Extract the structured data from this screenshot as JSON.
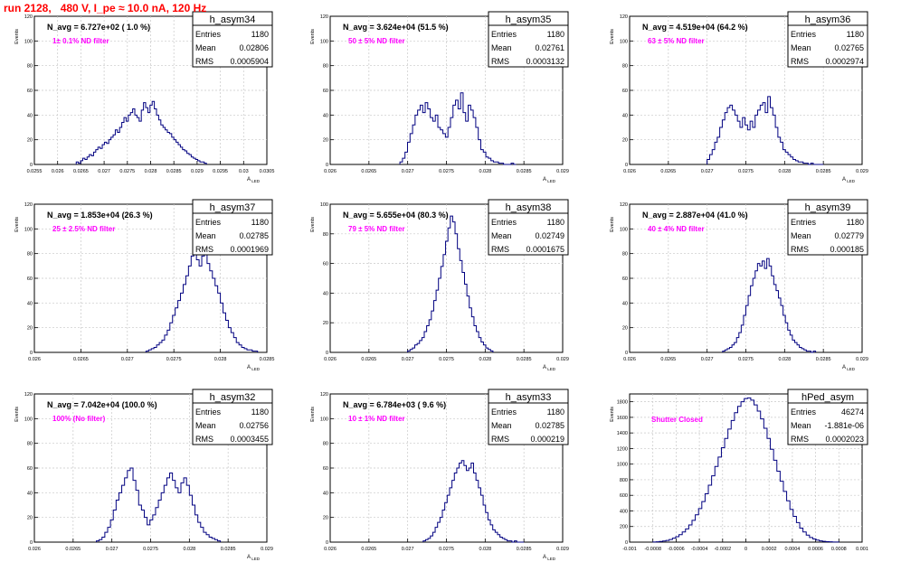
{
  "page_title": "run 2128,   480 V, I_pe ≈ 10.0 nA, 120 Hz",
  "colors": {
    "title": "#ff0000",
    "histogram": "#000080",
    "annotation": "#ff00ff",
    "grid": "#c8c8c8",
    "axis": "#000000"
  },
  "chart_data": [
    {
      "type": "histogram",
      "name": "h_asym34",
      "header": "N_avg = 6.727e+02 ( 1.0 %)",
      "filter_label": "1± 0.1% ND filter",
      "stats": {
        "entries": "1180",
        "mean": "0.02806",
        "rms": "0.0005904"
      },
      "ylabel": "Events",
      "xlabel": "A_LED",
      "xlim": [
        0.0255,
        0.0305
      ],
      "ylim": [
        0,
        120
      ],
      "xticks": [
        "0.0255",
        "0.026",
        "0.0265",
        "0.027",
        "0.0275",
        "0.028",
        "0.0285",
        "0.029",
        "0.0295",
        "0.03",
        "0.0305"
      ],
      "yticks": [
        "0",
        "20",
        "40",
        "60",
        "80",
        "100",
        "120"
      ],
      "bin_edges": [
        0.0264,
        0.0292
      ],
      "values": [
        2,
        1,
        3,
        5,
        4,
        6,
        8,
        7,
        10,
        12,
        14,
        13,
        16,
        18,
        17,
        20,
        22,
        24,
        28,
        26,
        30,
        34,
        38,
        35,
        40,
        42,
        45,
        40,
        38,
        35,
        44,
        50,
        46,
        42,
        48,
        51,
        45,
        40,
        36,
        32,
        30,
        28,
        26,
        25,
        22,
        20,
        18,
        16,
        14,
        12,
        11,
        9,
        8,
        6,
        5,
        4,
        3,
        2,
        2,
        1
      ]
    },
    {
      "type": "histogram",
      "name": "h_asym35",
      "header": "N_avg = 3.624e+04 (51.5 %)",
      "filter_label": "50 ± 5% ND filter",
      "stats": {
        "entries": "1180",
        "mean": "0.02761",
        "rms": "0.0003132"
      },
      "ylabel": "Events",
      "xlabel": "A_LED",
      "xlim": [
        0.026,
        0.029
      ],
      "ylim": [
        0,
        120
      ],
      "xticks": [
        "0.026",
        "0.0265",
        "0.027",
        "0.0275",
        "0.028",
        "0.0285",
        "0.029"
      ],
      "yticks": [
        "0",
        "20",
        "40",
        "60",
        "80",
        "100",
        "120"
      ],
      "bin_edges": [
        0.0269,
        0.0284
      ],
      "values": [
        2,
        5,
        10,
        18,
        25,
        32,
        40,
        44,
        48,
        42,
        50,
        45,
        38,
        35,
        40,
        30,
        28,
        25,
        22,
        30,
        38,
        48,
        52,
        45,
        58,
        42,
        35,
        48,
        44,
        38,
        30,
        20,
        12,
        10,
        6,
        5,
        3,
        2,
        2,
        1,
        1,
        0,
        0,
        0,
        1,
        0
      ]
    },
    {
      "type": "histogram",
      "name": "h_asym36",
      "header": "N_avg = 4.519e+04 (64.2 %)",
      "filter_label": "63 ± 5% ND filter",
      "stats": {
        "entries": "1180",
        "mean": "0.02765",
        "rms": "0.0002974"
      },
      "ylabel": "Events",
      "xlabel": "A_LED",
      "xlim": [
        0.026,
        0.029
      ],
      "ylim": [
        0,
        120
      ],
      "xticks": [
        "0.026",
        "0.0265",
        "0.027",
        "0.0275",
        "0.028",
        "0.0285",
        "0.029"
      ],
      "yticks": [
        "0",
        "20",
        "40",
        "60",
        "80",
        "100",
        "120"
      ],
      "bin_edges": [
        0.027,
        0.0285
      ],
      "values": [
        4,
        8,
        12,
        18,
        22,
        30,
        36,
        42,
        46,
        48,
        44,
        40,
        35,
        30,
        38,
        32,
        28,
        35,
        30,
        40,
        44,
        48,
        50,
        42,
        55,
        46,
        40,
        30,
        22,
        18,
        12,
        10,
        8,
        6,
        4,
        3,
        2,
        2,
        1,
        1,
        0,
        1,
        0,
        0,
        0,
        0
      ]
    },
    {
      "type": "histogram",
      "name": "h_asym37",
      "header": "N_avg = 1.853e+04 (26.3 %)",
      "filter_label": "25 ± 2.5% ND filter",
      "stats": {
        "entries": "1180",
        "mean": "0.02785",
        "rms": "0.0001969"
      },
      "ylabel": "Events",
      "xlabel": "A_LED",
      "xlim": [
        0.026,
        0.0285
      ],
      "ylim": [
        0,
        120
      ],
      "xticks": [
        "0.026",
        "0.0265",
        "0.027",
        "0.0275",
        "0.028",
        "0.0285"
      ],
      "yticks": [
        "0",
        "20",
        "40",
        "60",
        "80",
        "100",
        "120"
      ],
      "bin_edges": [
        0.0272,
        0.0284
      ],
      "values": [
        1,
        2,
        3,
        4,
        6,
        8,
        10,
        14,
        18,
        24,
        30,
        36,
        42,
        48,
        55,
        62,
        70,
        78,
        82,
        75,
        70,
        78,
        80,
        72,
        66,
        60,
        54,
        48,
        40,
        32,
        26,
        20,
        16,
        12,
        8,
        6,
        4,
        3,
        2,
        2,
        1,
        1
      ]
    },
    {
      "type": "histogram",
      "name": "h_asym38",
      "header": "N_avg = 5.655e+04 (80.3 %)",
      "filter_label": "79 ± 5% ND filter",
      "stats": {
        "entries": "1180",
        "mean": "0.02749",
        "rms": "0.0001675"
      },
      "ylabel": "Events",
      "xlabel": "A_LED",
      "xlim": [
        0.026,
        0.029
      ],
      "ylim": [
        0,
        100
      ],
      "xticks": [
        "0.026",
        "0.0265",
        "0.027",
        "0.0275",
        "0.028",
        "0.0285",
        "0.029"
      ],
      "yticks": [
        "0",
        "20",
        "40",
        "60",
        "80",
        "100"
      ],
      "bin_edges": [
        0.027,
        0.0281
      ],
      "values": [
        1,
        2,
        3,
        5,
        6,
        8,
        10,
        14,
        18,
        22,
        28,
        35,
        42,
        50,
        58,
        66,
        75,
        84,
        92,
        88,
        80,
        70,
        62,
        54,
        46,
        38,
        30,
        24,
        18,
        14,
        10,
        7,
        5,
        3,
        2,
        1
      ]
    },
    {
      "type": "histogram",
      "name": "h_asym39",
      "header": "N_avg = 2.887e+04 (41.0 %)",
      "filter_label": "40 ± 4% ND filter",
      "stats": {
        "entries": "1180",
        "mean": "0.02779",
        "rms": "0.000185"
      },
      "ylabel": "Events",
      "xlabel": "A_LED",
      "xlim": [
        0.026,
        0.029
      ],
      "ylim": [
        0,
        120
      ],
      "xticks": [
        "0.026",
        "0.0265",
        "0.027",
        "0.0275",
        "0.028",
        "0.0285",
        "0.029"
      ],
      "yticks": [
        "0",
        "20",
        "40",
        "60",
        "80",
        "100",
        "120"
      ],
      "bin_edges": [
        0.0272,
        0.0284
      ],
      "values": [
        1,
        2,
        3,
        4,
        6,
        8,
        12,
        16,
        22,
        30,
        38,
        46,
        54,
        60,
        66,
        72,
        70,
        74,
        68,
        76,
        70,
        62,
        55,
        50,
        44,
        38,
        30,
        24,
        18,
        14,
        10,
        8,
        6,
        4,
        3,
        2,
        1,
        1,
        0,
        1
      ]
    },
    {
      "type": "histogram",
      "name": "h_asym32",
      "header": "N_avg = 7.042e+04 (100.0 %)",
      "filter_label": "100% (No filter)",
      "stats": {
        "entries": "1180",
        "mean": "0.02756",
        "rms": "0.0003455"
      },
      "ylabel": "Events",
      "xlabel": "A_LED",
      "xlim": [
        0.026,
        0.029
      ],
      "ylim": [
        0,
        120
      ],
      "xticks": [
        "0.026",
        "0.0265",
        "0.027",
        "0.0275",
        "0.028",
        "0.0285",
        "0.029"
      ],
      "yticks": [
        "0",
        "20",
        "40",
        "60",
        "80",
        "100",
        "120"
      ],
      "bin_edges": [
        0.0268,
        0.0284
      ],
      "values": [
        1,
        2,
        4,
        8,
        12,
        18,
        26,
        34,
        40,
        46,
        52,
        58,
        60,
        50,
        42,
        30,
        26,
        20,
        14,
        18,
        22,
        28,
        34,
        40,
        46,
        52,
        56,
        50,
        44,
        40,
        48,
        52,
        46,
        38,
        30,
        22,
        16,
        12,
        8,
        6,
        4,
        3,
        2,
        1
      ]
    },
    {
      "type": "histogram",
      "name": "h_asym33",
      "header": "N_avg = 6.784e+03 ( 9.6 %)",
      "filter_label": "10 ± 1% ND filter",
      "stats": {
        "entries": "1180",
        "mean": "0.02785",
        "rms": "0.000219"
      },
      "ylabel": "Events",
      "xlabel": "A_LED",
      "xlim": [
        0.026,
        0.029
      ],
      "ylim": [
        0,
        120
      ],
      "xticks": [
        "0.026",
        "0.0265",
        "0.027",
        "0.0275",
        "0.028",
        "0.0285",
        "0.029"
      ],
      "yticks": [
        "0",
        "20",
        "40",
        "60",
        "80",
        "100",
        "120"
      ],
      "bin_edges": [
        0.0272,
        0.0285
      ],
      "values": [
        1,
        2,
        3,
        5,
        8,
        12,
        16,
        20,
        26,
        32,
        38,
        44,
        50,
        56,
        60,
        64,
        66,
        62,
        58,
        60,
        64,
        56,
        50,
        44,
        38,
        30,
        24,
        18,
        14,
        10,
        8,
        6,
        4,
        3,
        2,
        1,
        1,
        0,
        1,
        0,
        0,
        0
      ]
    },
    {
      "type": "histogram",
      "name": "hPed_asym",
      "header": "",
      "filter_label": "Shutter Closed",
      "stats": {
        "entries": "46274",
        "mean": "-1.881e-06",
        "rms": "0.0002023"
      },
      "ylabel": "Events",
      "xlabel": "",
      "xlim": [
        -0.001,
        0.001
      ],
      "ylim": [
        0,
        1900
      ],
      "xticks": [
        "-0.001",
        "-0.0008",
        "-0.0006",
        "-0.0004",
        "-0.0002",
        "0",
        "0.0002",
        "0.0004",
        "0.0006",
        "0.0008",
        "0.001"
      ],
      "yticks": [
        "0",
        "200",
        "400",
        "600",
        "800",
        "1000",
        "1200",
        "1400",
        "1600",
        "1800"
      ],
      "bin_edges": [
        -0.0008,
        0.0008
      ],
      "values": [
        2,
        4,
        8,
        14,
        22,
        34,
        50,
        70,
        96,
        130,
        170,
        220,
        280,
        350,
        430,
        520,
        620,
        730,
        850,
        970,
        1090,
        1210,
        1330,
        1450,
        1560,
        1660,
        1740,
        1800,
        1840,
        1850,
        1820,
        1760,
        1680,
        1580,
        1460,
        1330,
        1190,
        1050,
        910,
        780,
        650,
        530,
        420,
        330,
        250,
        180,
        130,
        90,
        60,
        40,
        26,
        16,
        10,
        6,
        4,
        2,
        1
      ]
    }
  ]
}
